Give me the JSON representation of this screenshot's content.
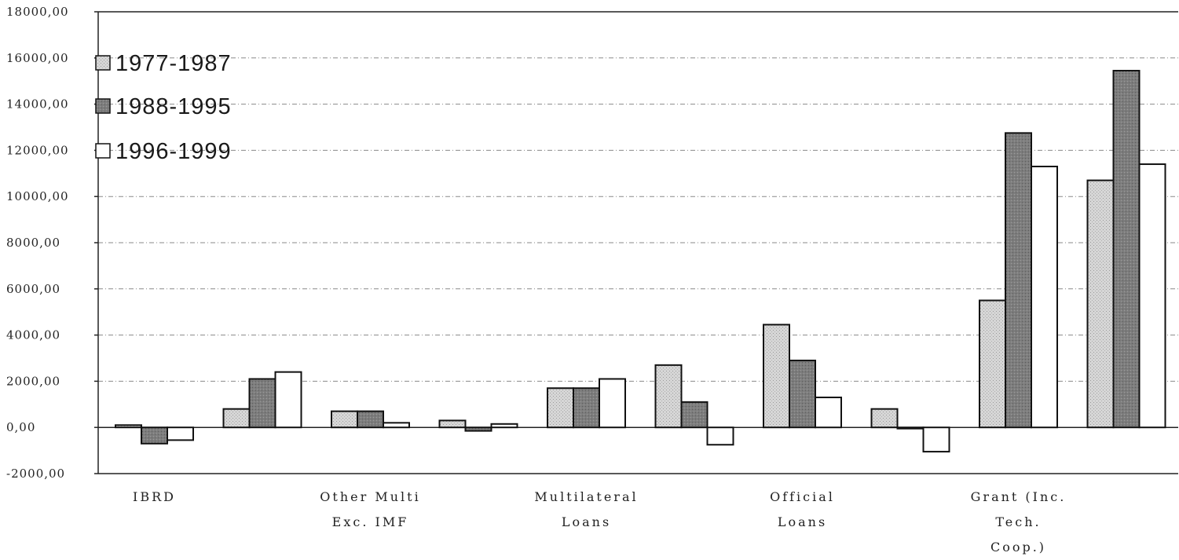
{
  "chart_data": {
    "type": "bar",
    "title": "",
    "xlabel": "",
    "ylabel": "",
    "ylim": [
      -2000,
      18000
    ],
    "yticks": [
      18000,
      16000,
      14000,
      12000,
      10000,
      8000,
      6000,
      4000,
      2000,
      0,
      -2000
    ],
    "ytick_labels": [
      "18000,00",
      "16000,00",
      "14000,00",
      "12000,00",
      "10000,00",
      "8000,00",
      "6000,00",
      "4000,00",
      "2000,00",
      "0,00",
      "-2000,00"
    ],
    "grid": true,
    "legend_position": "top-left",
    "categories": [
      "IBRD",
      "",
      "Other Multi Exc. IMF",
      "",
      "Multilateral Loans",
      "",
      "Official Loans",
      "",
      "Grant (Inc. Tech. Coop.)",
      ""
    ],
    "category_labels": [
      [
        "IBRD"
      ],
      [],
      [
        "Other Multi",
        "Exc. IMF"
      ],
      [],
      [
        "Multilateral",
        "Loans"
      ],
      [],
      [
        "Official",
        "Loans"
      ],
      [],
      [
        "Grant (Inc.",
        "Tech.",
        "Coop.)"
      ],
      []
    ],
    "series": [
      {
        "name": "1977-1987",
        "color": "#d6d6d6",
        "values": [
          100,
          800,
          700,
          300,
          1700,
          2700,
          4450,
          800,
          5500,
          10700
        ]
      },
      {
        "name": "1988-1995",
        "color": "#7d7d7d",
        "values": [
          -700,
          2100,
          700,
          -150,
          1700,
          1100,
          2900,
          -50,
          12750,
          15450
        ]
      },
      {
        "name": "1996-1999",
        "color": "#ffffff",
        "values": [
          -550,
          2400,
          200,
          150,
          2100,
          -750,
          1300,
          -1050,
          11300,
          11400
        ]
      }
    ]
  }
}
